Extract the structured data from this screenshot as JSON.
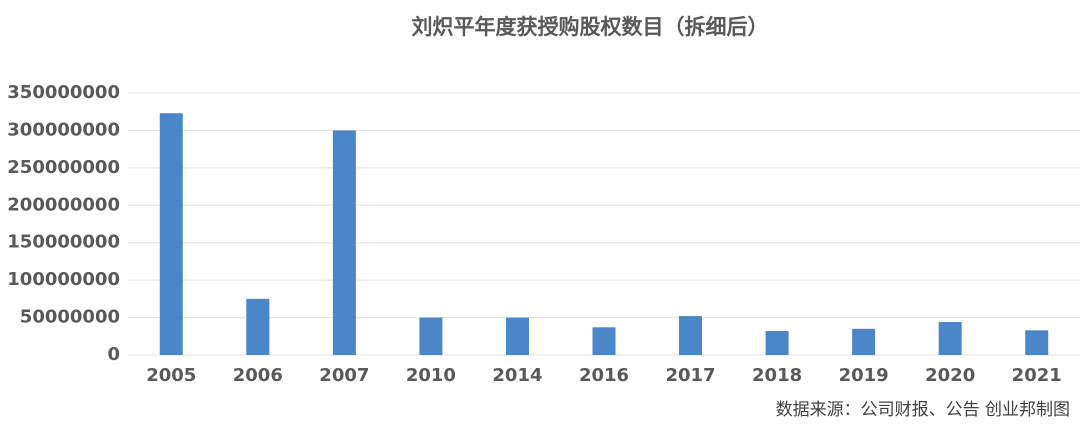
{
  "chart_data": {
    "type": "bar",
    "title": "刘炽平年度获授购股权数目（拆细后）",
    "categories": [
      "2005",
      "2006",
      "2007",
      "2010",
      "2014",
      "2016",
      "2017",
      "2018",
      "2019",
      "2020",
      "2021"
    ],
    "values": [
      323000000,
      75000000,
      300000000,
      50000000,
      50000000,
      37000000,
      52000000,
      32000000,
      35000000,
      44000000,
      33000000
    ],
    "color": "#4a86c8",
    "ylim": [
      0,
      350000000
    ],
    "yticks": [
      0,
      50000000,
      100000000,
      150000000,
      200000000,
      250000000,
      300000000,
      350000000
    ],
    "grid": true,
    "source": "数据来源：公司财报、公告 创业邦制图"
  }
}
